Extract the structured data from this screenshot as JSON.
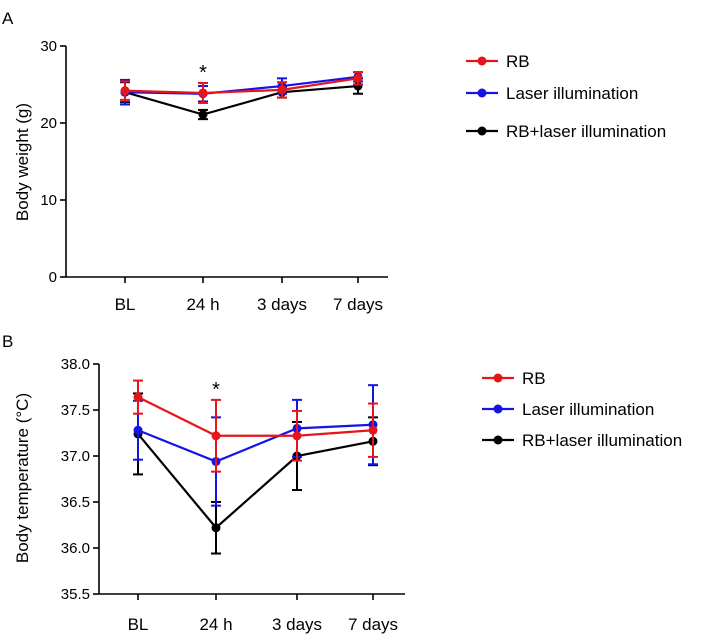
{
  "chart_data": [
    {
      "panel": "A",
      "type": "line",
      "title": "",
      "xlabel": "",
      "ylabel": "Body weight (g)",
      "ylim": [
        0,
        30
      ],
      "yticks": [
        0,
        10,
        20,
        30
      ],
      "categories": [
        "BL",
        "24 h",
        "3 days",
        "7 days"
      ],
      "series": [
        {
          "name": "RB",
          "color": "#e8141b",
          "values": [
            24.2,
            23.9,
            24.3,
            25.8
          ],
          "errors": [
            1.2,
            1.3,
            1.0,
            0.8
          ]
        },
        {
          "name": "Laser illumination",
          "color": "#1414e6",
          "values": [
            24.0,
            23.8,
            24.8,
            26.0
          ],
          "errors": [
            1.6,
            1.0,
            1.0,
            0.6
          ]
        },
        {
          "name": "RB+laser illumination",
          "color": "#000000",
          "values": [
            24.0,
            21.1,
            24.0,
            24.8
          ],
          "errors": [
            1.3,
            0.6,
            0.7,
            1.0
          ]
        }
      ],
      "annotations": [
        {
          "category": "24 h",
          "text": "*"
        }
      ]
    },
    {
      "panel": "B",
      "type": "line",
      "title": "",
      "xlabel": "",
      "ylabel": "Body temperature (°C)",
      "ylim": [
        35.5,
        38.0
      ],
      "yticks": [
        "35.5",
        "36.0",
        "36.5",
        "37.0",
        "37.5",
        "38.0"
      ],
      "categories": [
        "BL",
        "24 h",
        "3 days",
        "7 days"
      ],
      "series": [
        {
          "name": "RB",
          "color": "#e8141b",
          "values": [
            37.64,
            37.22,
            37.22,
            37.28
          ],
          "errors": [
            0.18,
            0.39,
            0.27,
            0.29
          ]
        },
        {
          "name": "Laser illumination",
          "color": "#1414e6",
          "values": [
            37.28,
            36.94,
            37.3,
            37.34
          ],
          "errors": [
            0.32,
            0.48,
            0.31,
            0.43
          ]
        },
        {
          "name": "RB+laser illumination",
          "color": "#000000",
          "values": [
            37.24,
            36.22,
            37.0,
            37.16
          ],
          "errors": [
            0.44,
            0.28,
            0.37,
            0.26
          ]
        }
      ],
      "annotations": [
        {
          "category": "24 h",
          "text": "*"
        }
      ]
    }
  ]
}
